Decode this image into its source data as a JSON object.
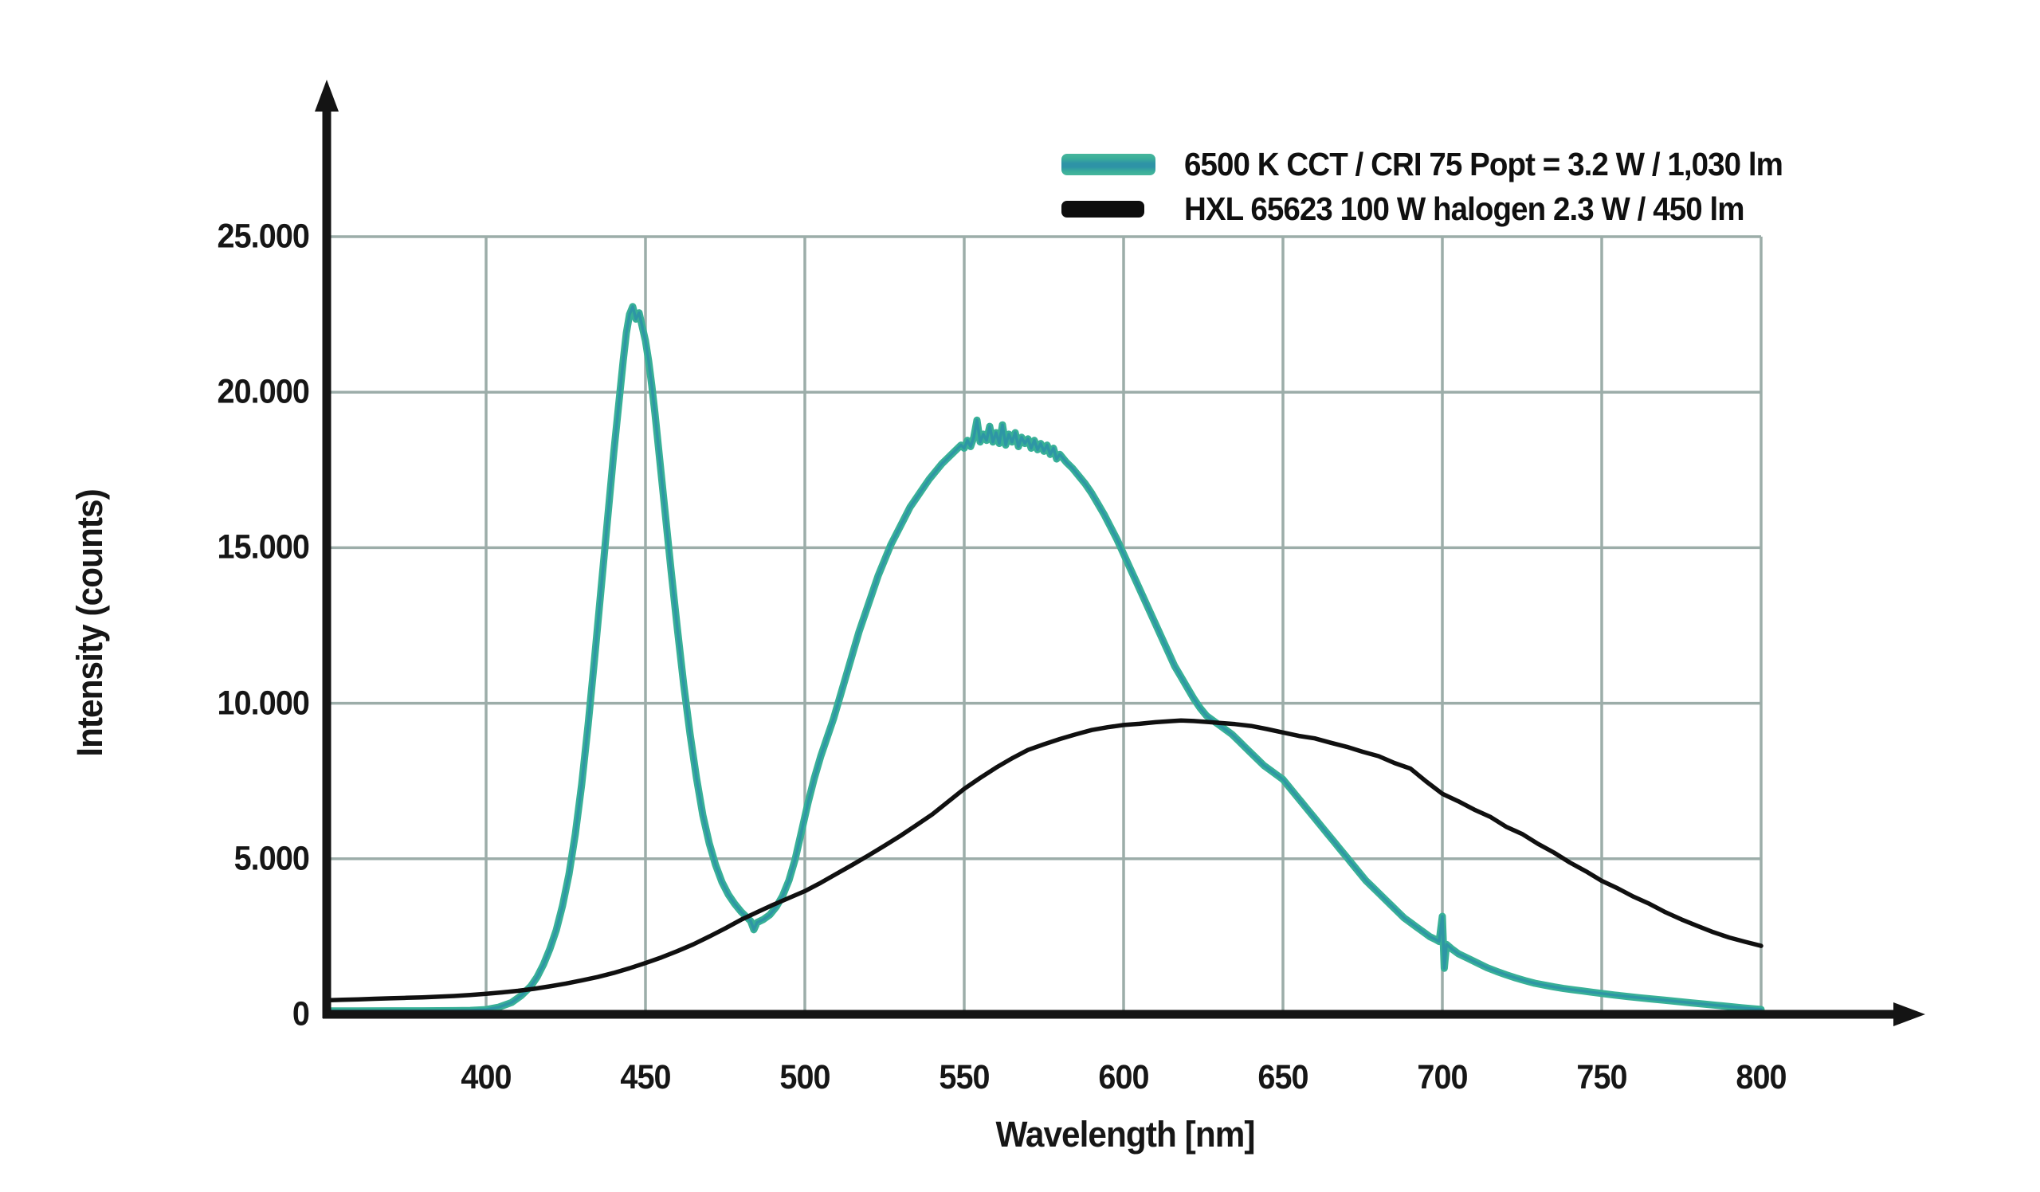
{
  "page": {
    "background": "#ffffff"
  },
  "colors": {
    "grid": "#9cada9",
    "axis": "#141414",
    "text": "#161616",
    "led_outer": "#38b097",
    "led_core": "#2e93a6",
    "halogen": "#101010"
  },
  "chart_data": {
    "type": "line",
    "title": "",
    "xlabel": "Wavelength [nm]",
    "ylabel": "Intensity (counts)",
    "xlim": [
      350,
      800
    ],
    "ylim": [
      0,
      25000
    ],
    "grid": true,
    "legend_position": "top-right",
    "x_ticks": {
      "values": [
        400,
        450,
        500,
        550,
        600,
        650,
        700,
        750,
        800
      ],
      "labels": [
        "400",
        "450",
        "500",
        "550",
        "600",
        "650",
        "700",
        "750",
        "800"
      ]
    },
    "y_ticks": {
      "values": [
        0,
        5000,
        10000,
        15000,
        20000,
        25000
      ],
      "labels": [
        "0",
        "5.000",
        "10.000",
        "15.000",
        "20.000",
        "25.000"
      ]
    },
    "series": [
      {
        "name": "6500 K CCT / CRI 75 Popt = 3.2 W / 1,030 lm",
        "color": "#38b097",
        "core_color": "#2e93a6",
        "points": [
          [
            350,
            110
          ],
          [
            360,
            110
          ],
          [
            370,
            112
          ],
          [
            380,
            112
          ],
          [
            390,
            118
          ],
          [
            395,
            125
          ],
          [
            400,
            150
          ],
          [
            404,
            230
          ],
          [
            408,
            380
          ],
          [
            411,
            600
          ],
          [
            414,
            900
          ],
          [
            416,
            1200
          ],
          [
            418,
            1600
          ],
          [
            420,
            2100
          ],
          [
            422,
            2700
          ],
          [
            424,
            3500
          ],
          [
            426,
            4500
          ],
          [
            428,
            5800
          ],
          [
            430,
            7400
          ],
          [
            432,
            9300
          ],
          [
            434,
            11400
          ],
          [
            436,
            13600
          ],
          [
            438,
            15800
          ],
          [
            440,
            18000
          ],
          [
            442,
            20000
          ],
          [
            443,
            21000
          ],
          [
            444,
            21900
          ],
          [
            445,
            22500
          ],
          [
            446,
            22750
          ],
          [
            447,
            22350
          ],
          [
            448,
            22550
          ],
          [
            449,
            22100
          ],
          [
            450,
            21650
          ],
          [
            451,
            21000
          ],
          [
            452,
            20200
          ],
          [
            453,
            19300
          ],
          [
            454,
            18300
          ],
          [
            456,
            16300
          ],
          [
            458,
            14300
          ],
          [
            460,
            12400
          ],
          [
            462,
            10600
          ],
          [
            464,
            9000
          ],
          [
            466,
            7600
          ],
          [
            468,
            6400
          ],
          [
            470,
            5500
          ],
          [
            472,
            4800
          ],
          [
            474,
            4250
          ],
          [
            476,
            3850
          ],
          [
            478,
            3550
          ],
          [
            480,
            3300
          ],
          [
            482,
            3100
          ],
          [
            483,
            3000
          ],
          [
            484,
            2720
          ],
          [
            485,
            2950
          ],
          [
            487,
            3050
          ],
          [
            489,
            3200
          ],
          [
            491,
            3450
          ],
          [
            493,
            3800
          ],
          [
            495,
            4300
          ],
          [
            497,
            5000
          ],
          [
            499,
            5900
          ],
          [
            501,
            6800
          ],
          [
            503,
            7600
          ],
          [
            505,
            8300
          ],
          [
            507,
            8900
          ],
          [
            509,
            9500
          ],
          [
            511,
            10200
          ],
          [
            513,
            10900
          ],
          [
            515,
            11600
          ],
          [
            517,
            12300
          ],
          [
            519,
            12900
          ],
          [
            521,
            13500
          ],
          [
            523,
            14100
          ],
          [
            525,
            14600
          ],
          [
            527,
            15100
          ],
          [
            529,
            15500
          ],
          [
            531,
            15900
          ],
          [
            533,
            16300
          ],
          [
            535,
            16600
          ],
          [
            537,
            16900
          ],
          [
            539,
            17200
          ],
          [
            541,
            17450
          ],
          [
            543,
            17700
          ],
          [
            545,
            17900
          ],
          [
            547,
            18100
          ],
          [
            549,
            18300
          ],
          [
            550,
            18200
          ],
          [
            551,
            18450
          ],
          [
            552,
            18250
          ],
          [
            553,
            18550
          ],
          [
            554,
            19100
          ],
          [
            555,
            18400
          ],
          [
            556,
            18650
          ],
          [
            557,
            18450
          ],
          [
            558,
            18900
          ],
          [
            559,
            18400
          ],
          [
            560,
            18700
          ],
          [
            561,
            18350
          ],
          [
            562,
            18950
          ],
          [
            563,
            18300
          ],
          [
            564,
            18650
          ],
          [
            565,
            18400
          ],
          [
            566,
            18700
          ],
          [
            567,
            18250
          ],
          [
            568,
            18550
          ],
          [
            569,
            18350
          ],
          [
            570,
            18500
          ],
          [
            571,
            18200
          ],
          [
            572,
            18450
          ],
          [
            573,
            18150
          ],
          [
            574,
            18350
          ],
          [
            575,
            18100
          ],
          [
            576,
            18300
          ],
          [
            577,
            18000
          ],
          [
            578,
            18200
          ],
          [
            579,
            17850
          ],
          [
            580,
            18000
          ],
          [
            582,
            17750
          ],
          [
            584,
            17550
          ],
          [
            586,
            17300
          ],
          [
            588,
            17050
          ],
          [
            590,
            16750
          ],
          [
            592,
            16400
          ],
          [
            594,
            16050
          ],
          [
            596,
            15650
          ],
          [
            598,
            15250
          ],
          [
            600,
            14800
          ],
          [
            602,
            14350
          ],
          [
            604,
            13900
          ],
          [
            606,
            13450
          ],
          [
            608,
            13000
          ],
          [
            610,
            12550
          ],
          [
            612,
            12100
          ],
          [
            614,
            11650
          ],
          [
            616,
            11200
          ],
          [
            618,
            10850
          ],
          [
            620,
            10500
          ],
          [
            622,
            10150
          ],
          [
            624,
            9850
          ],
          [
            626,
            9600
          ],
          [
            628,
            9450
          ],
          [
            630,
            9300
          ],
          [
            632,
            9150
          ],
          [
            634,
            9000
          ],
          [
            636,
            8800
          ],
          [
            638,
            8600
          ],
          [
            640,
            8400
          ],
          [
            642,
            8200
          ],
          [
            644,
            8000
          ],
          [
            646,
            7850
          ],
          [
            648,
            7700
          ],
          [
            650,
            7550
          ],
          [
            652,
            7300
          ],
          [
            654,
            7050
          ],
          [
            656,
            6800
          ],
          [
            658,
            6550
          ],
          [
            660,
            6300
          ],
          [
            662,
            6050
          ],
          [
            664,
            5800
          ],
          [
            666,
            5550
          ],
          [
            668,
            5300
          ],
          [
            670,
            5050
          ],
          [
            672,
            4800
          ],
          [
            674,
            4550
          ],
          [
            676,
            4300
          ],
          [
            678,
            4100
          ],
          [
            680,
            3900
          ],
          [
            682,
            3700
          ],
          [
            684,
            3500
          ],
          [
            686,
            3300
          ],
          [
            688,
            3100
          ],
          [
            690,
            2950
          ],
          [
            692,
            2800
          ],
          [
            694,
            2650
          ],
          [
            696,
            2500
          ],
          [
            698,
            2400
          ],
          [
            699,
            2340
          ],
          [
            700,
            3150
          ],
          [
            700.6,
            1480
          ],
          [
            701.3,
            2250
          ],
          [
            703,
            2100
          ],
          [
            705,
            1950
          ],
          [
            708,
            1800
          ],
          [
            711,
            1650
          ],
          [
            714,
            1500
          ],
          [
            717,
            1380
          ],
          [
            720,
            1270
          ],
          [
            723,
            1170
          ],
          [
            726,
            1080
          ],
          [
            729,
            1000
          ],
          [
            732,
            940
          ],
          [
            735,
            880
          ],
          [
            738,
            830
          ],
          [
            741,
            790
          ],
          [
            744,
            750
          ],
          [
            747,
            710
          ],
          [
            750,
            670
          ],
          [
            754,
            620
          ],
          [
            758,
            575
          ],
          [
            762,
            530
          ],
          [
            766,
            490
          ],
          [
            770,
            450
          ],
          [
            774,
            410
          ],
          [
            778,
            370
          ],
          [
            782,
            330
          ],
          [
            786,
            290
          ],
          [
            790,
            250
          ],
          [
            794,
            210
          ],
          [
            798,
            175
          ],
          [
            800,
            160
          ]
        ]
      },
      {
        "name": "HXL 65623 100 W halogen 2.3 W / 450 lm",
        "color": "#101010",
        "points": [
          [
            350,
            450
          ],
          [
            355,
            465
          ],
          [
            360,
            480
          ],
          [
            365,
            500
          ],
          [
            370,
            515
          ],
          [
            375,
            530
          ],
          [
            380,
            545
          ],
          [
            385,
            565
          ],
          [
            390,
            590
          ],
          [
            395,
            620
          ],
          [
            400,
            660
          ],
          [
            405,
            705
          ],
          [
            410,
            755
          ],
          [
            415,
            820
          ],
          [
            420,
            900
          ],
          [
            425,
            990
          ],
          [
            430,
            1090
          ],
          [
            435,
            1200
          ],
          [
            440,
            1330
          ],
          [
            445,
            1480
          ],
          [
            450,
            1650
          ],
          [
            455,
            1830
          ],
          [
            460,
            2030
          ],
          [
            465,
            2250
          ],
          [
            470,
            2500
          ],
          [
            475,
            2760
          ],
          [
            480,
            3040
          ],
          [
            485,
            3280
          ],
          [
            490,
            3520
          ],
          [
            495,
            3740
          ],
          [
            500,
            3960
          ],
          [
            505,
            4230
          ],
          [
            510,
            4520
          ],
          [
            515,
            4810
          ],
          [
            520,
            5110
          ],
          [
            525,
            5420
          ],
          [
            530,
            5740
          ],
          [
            535,
            6080
          ],
          [
            540,
            6430
          ],
          [
            545,
            6840
          ],
          [
            550,
            7250
          ],
          [
            555,
            7600
          ],
          [
            560,
            7930
          ],
          [
            565,
            8230
          ],
          [
            570,
            8500
          ],
          [
            575,
            8680
          ],
          [
            580,
            8850
          ],
          [
            585,
            9000
          ],
          [
            590,
            9140
          ],
          [
            595,
            9230
          ],
          [
            600,
            9300
          ],
          [
            605,
            9340
          ],
          [
            610,
            9390
          ],
          [
            615,
            9425
          ],
          [
            618,
            9445
          ],
          [
            622,
            9430
          ],
          [
            626,
            9400
          ],
          [
            630,
            9370
          ],
          [
            635,
            9330
          ],
          [
            640,
            9270
          ],
          [
            645,
            9170
          ],
          [
            650,
            9060
          ],
          [
            655,
            8950
          ],
          [
            660,
            8870
          ],
          [
            665,
            8730
          ],
          [
            670,
            8600
          ],
          [
            675,
            8440
          ],
          [
            680,
            8300
          ],
          [
            685,
            8080
          ],
          [
            690,
            7900
          ],
          [
            695,
            7480
          ],
          [
            700,
            7090
          ],
          [
            705,
            6850
          ],
          [
            710,
            6580
          ],
          [
            715,
            6350
          ],
          [
            720,
            6030
          ],
          [
            725,
            5800
          ],
          [
            730,
            5480
          ],
          [
            735,
            5200
          ],
          [
            740,
            4880
          ],
          [
            745,
            4600
          ],
          [
            750,
            4290
          ],
          [
            755,
            4050
          ],
          [
            760,
            3780
          ],
          [
            765,
            3550
          ],
          [
            770,
            3280
          ],
          [
            775,
            3050
          ],
          [
            780,
            2840
          ],
          [
            785,
            2640
          ],
          [
            790,
            2470
          ],
          [
            795,
            2330
          ],
          [
            800,
            2200
          ]
        ]
      }
    ]
  }
}
